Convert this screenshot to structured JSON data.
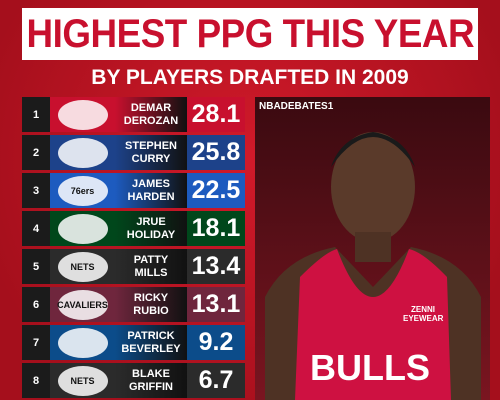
{
  "header": {
    "title": "HIGHEST PPG THIS YEAR",
    "subtitle": "BY PLAYERS DRAFTED IN 2009"
  },
  "rows": [
    {
      "rank": "1",
      "first": "DEMAR",
      "last": "DEROZAN",
      "ppg": 28.1,
      "color": "#c8102e"
    },
    {
      "rank": "2",
      "first": "STEPHEN",
      "last": "CURRY",
      "ppg": 25.8,
      "color": "#1d428a"
    },
    {
      "rank": "3",
      "first": "JAMES",
      "last": "HARDEN",
      "ppg": 22.5,
      "color": "#1d5bbf",
      "logo": "76ers"
    },
    {
      "rank": "4",
      "first": "JRUE",
      "last": "HOLIDAY",
      "ppg": 18.1,
      "color": "#00471b"
    },
    {
      "rank": "5",
      "first": "PATTY",
      "last": "MILLS",
      "ppg": 13.4,
      "color": "#2b2b2b",
      "logo": "NETS"
    },
    {
      "rank": "6",
      "first": "RICKY",
      "last": "RUBIO",
      "ppg": 13.1,
      "color": "#6f263d",
      "logo": "CAVALIERS"
    },
    {
      "rank": "7",
      "first": "PATRICK",
      "last": "BEVERLEY",
      "ppg": 9.2,
      "color": "#0c4c8a"
    },
    {
      "rank": "8",
      "first": "BLAKE",
      "last": "GRIFFIN",
      "ppg": 6.7,
      "color": "#2b2b2b",
      "logo": "NETS"
    }
  ],
  "photo": {
    "tag": "NBADEBATES1",
    "jersey": "BULLS",
    "sponsor": "ZENNI EYEWEAR"
  }
}
